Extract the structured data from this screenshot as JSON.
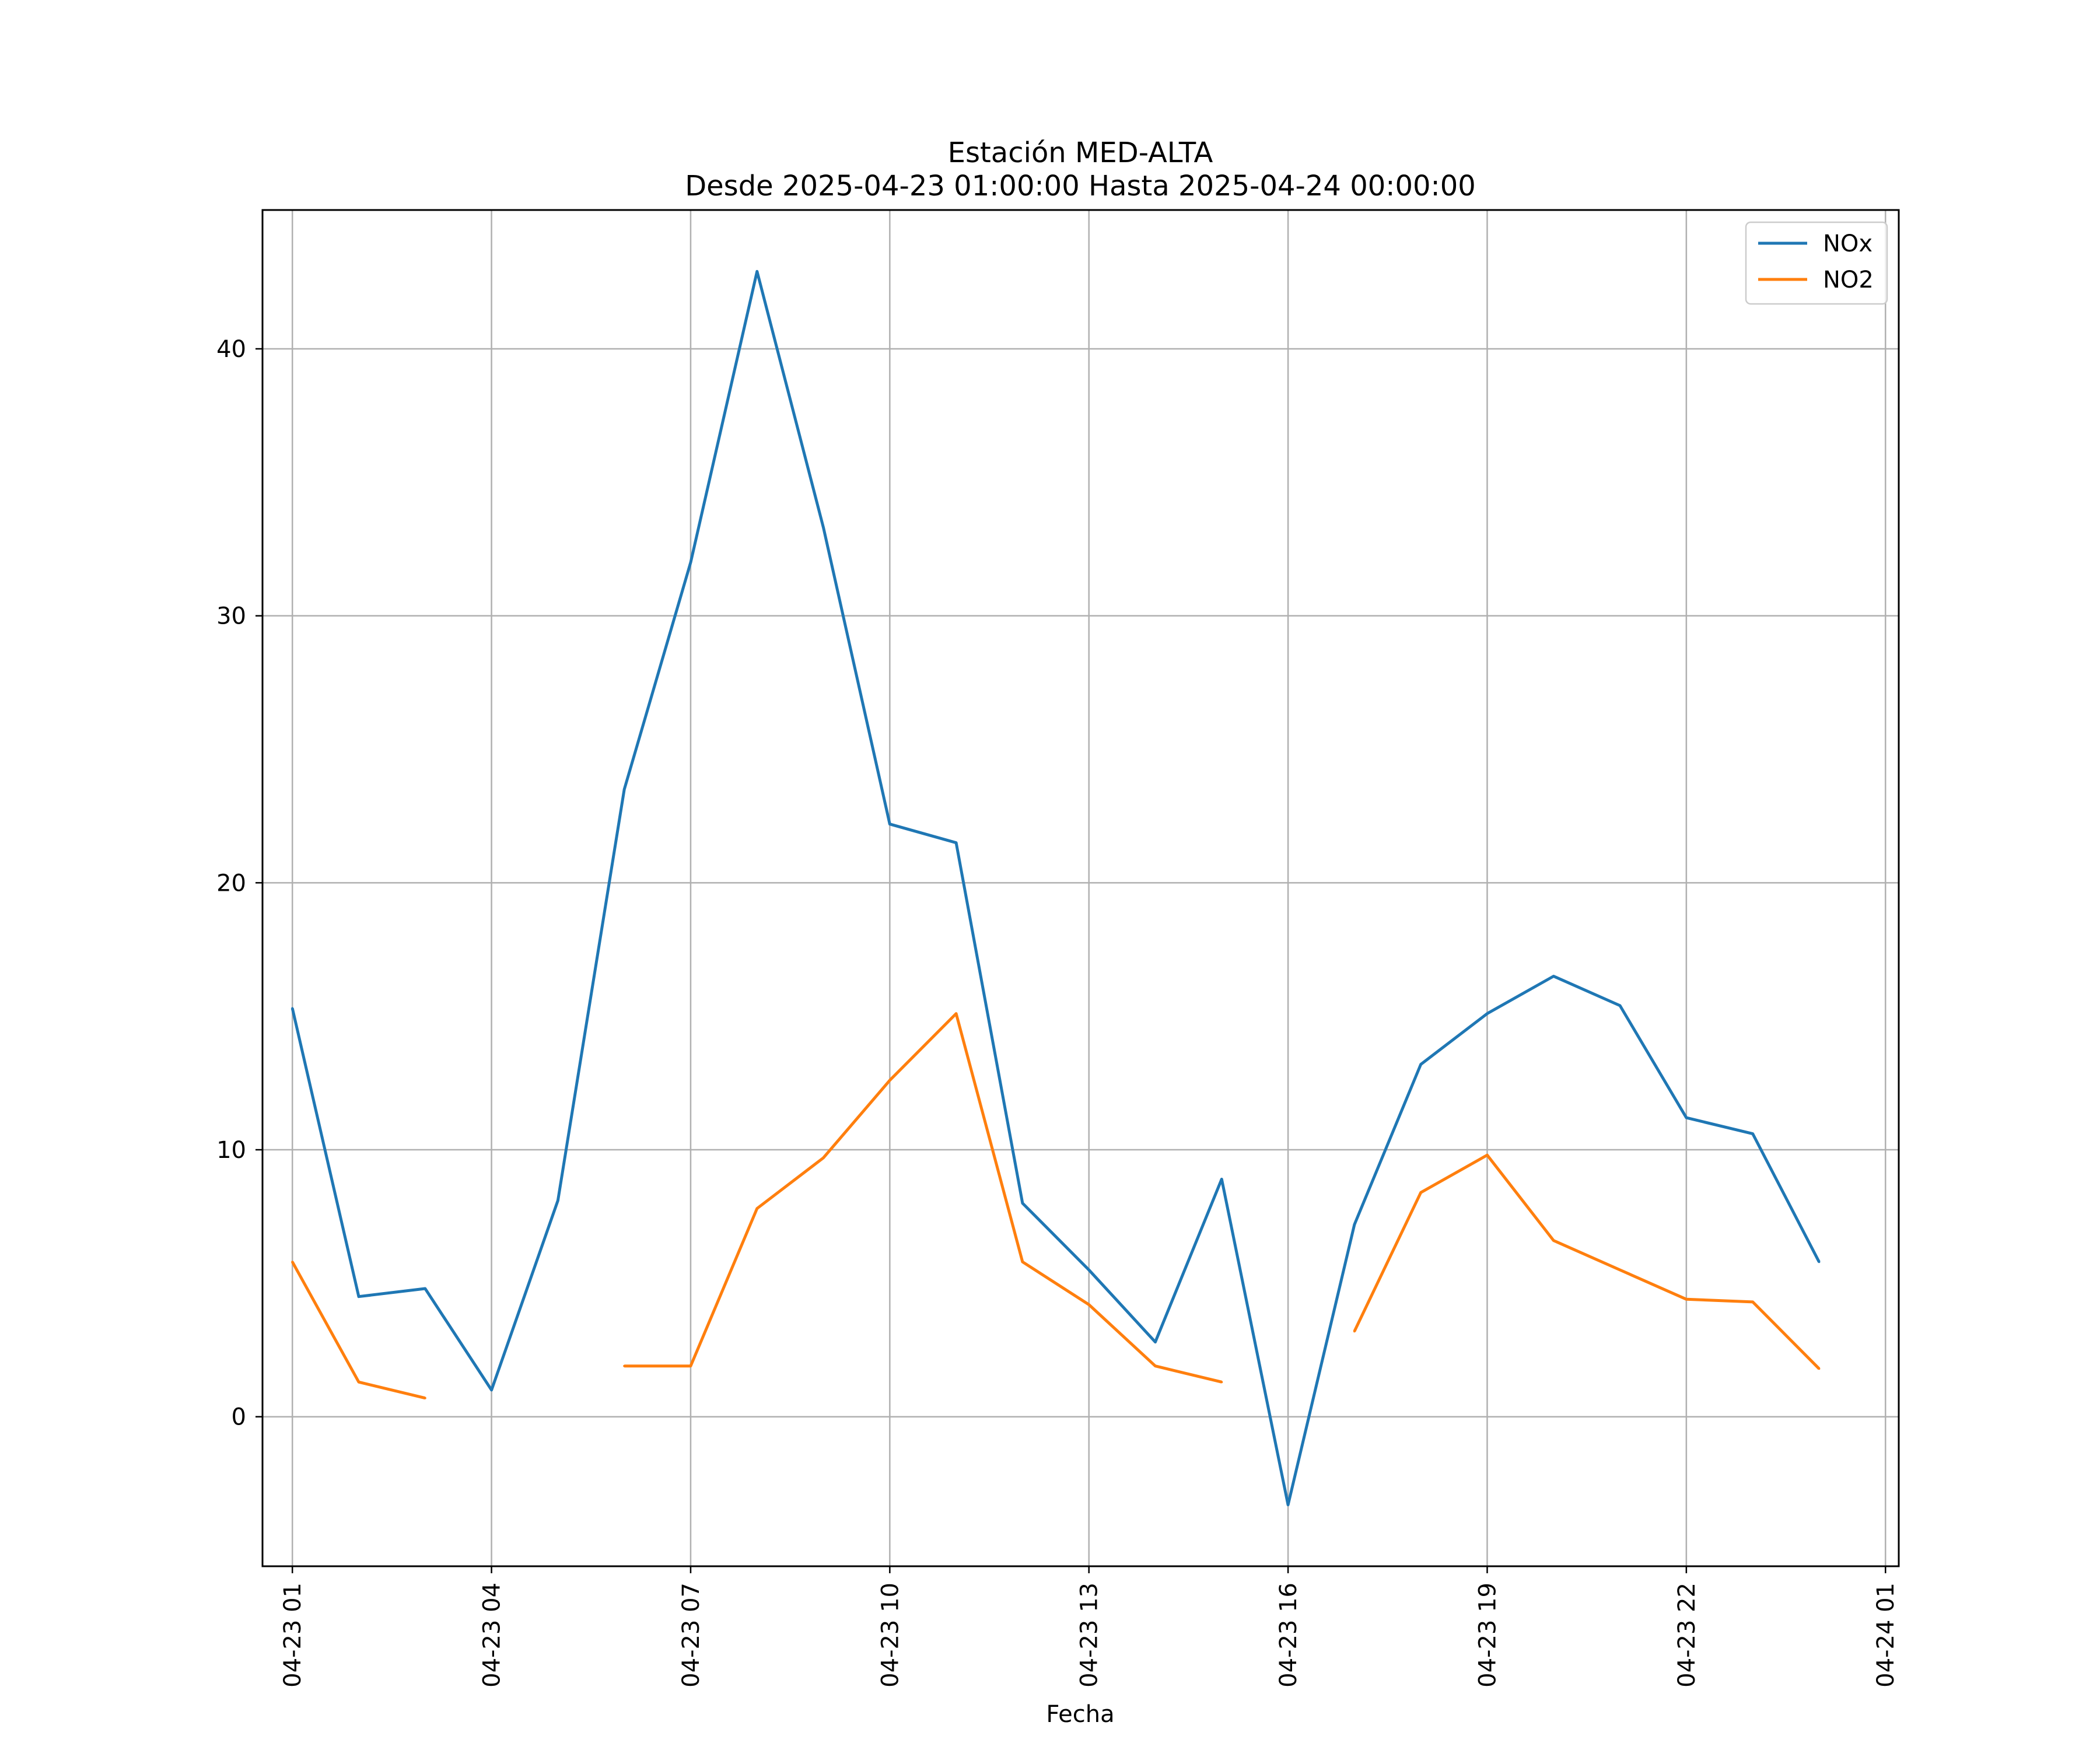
{
  "chart_data": {
    "type": "line",
    "title": "Estación MED-ALTA",
    "subtitle": "Desde 2025-04-23 01:00:00 Hasta 2025-04-24 00:00:00",
    "xlabel": "Fecha",
    "ylabel": "",
    "x_unit": "hour of 2025-04-23",
    "xlim": [
      0.55,
      25.2
    ],
    "ylim": [
      -5.6,
      45.2
    ],
    "grid": true,
    "legend_position": "top-right",
    "x_ticks": [
      {
        "x": 1,
        "label": "04-23 01"
      },
      {
        "x": 4,
        "label": "04-23 04"
      },
      {
        "x": 7,
        "label": "04-23 07"
      },
      {
        "x": 10,
        "label": "04-23 10"
      },
      {
        "x": 13,
        "label": "04-23 13"
      },
      {
        "x": 16,
        "label": "04-23 16"
      },
      {
        "x": 19,
        "label": "04-23 19"
      },
      {
        "x": 22,
        "label": "04-23 22"
      },
      {
        "x": 25,
        "label": "04-24 01"
      }
    ],
    "y_ticks": [
      0,
      10,
      20,
      30,
      40
    ],
    "x": [
      1,
      2,
      3,
      4,
      5,
      6,
      7,
      8,
      9,
      10,
      11,
      12,
      13,
      14,
      15,
      16,
      17,
      18,
      19,
      20,
      21,
      22,
      23,
      24
    ],
    "series": [
      {
        "name": "NOx",
        "color": "#1f77b4",
        "values": [
          15.3,
          4.5,
          4.8,
          1.0,
          8.1,
          23.5,
          32.0,
          42.9,
          33.3,
          22.2,
          21.5,
          8.0,
          5.5,
          2.8,
          8.9,
          -3.3,
          7.2,
          13.2,
          15.1,
          16.5,
          15.4,
          11.2,
          10.6,
          5.8
        ]
      },
      {
        "name": "NO2",
        "color": "#ff7f0e",
        "values": [
          5.8,
          1.3,
          0.7,
          null,
          null,
          1.9,
          1.9,
          7.8,
          9.7,
          12.6,
          15.1,
          5.8,
          4.2,
          1.9,
          1.3,
          null,
          3.2,
          8.4,
          9.8,
          6.6,
          5.5,
          4.4,
          4.3,
          1.8
        ]
      }
    ]
  }
}
